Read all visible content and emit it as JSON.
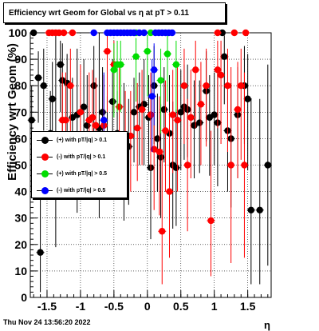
{
  "title": "Efficiency wrt Geom for Global vs   η at pT > 0.11",
  "timestamp": "Thu Nov 24 13:56:20 2022",
  "chart_data": {
    "type": "scatter",
    "xlabel": "η",
    "ylabel": "Efficiency wrt Geom (%)",
    "xlim": [
      -1.75,
      1.85
    ],
    "ylim": [
      0,
      100
    ],
    "x_ticks": [
      "-1.5",
      "-1",
      "-0.5",
      "0",
      "0.5",
      "1",
      "1.5"
    ],
    "y_ticks": [
      "0",
      "10",
      "20",
      "30",
      "40",
      "50",
      "60",
      "70",
      "80",
      "90",
      "100"
    ],
    "grid": true,
    "legend_position": "middle-left",
    "series": [
      {
        "name": "(+) with pT/|q| > 0.1",
        "color": "#000000",
        "points": [
          {
            "x": -1.7,
            "y": 100,
            "lo": 99,
            "hi": 100
          },
          {
            "x": -1.73,
            "y": 67,
            "lo": 47,
            "hi": 80
          },
          {
            "x": -1.63,
            "y": 83,
            "lo": 66,
            "hi": 93
          },
          {
            "x": -1.6,
            "y": 17,
            "lo": 2,
            "hi": 41
          },
          {
            "x": -1.55,
            "y": 80,
            "lo": 63,
            "hi": 94
          },
          {
            "x": -1.45,
            "y": 62,
            "lo": 41,
            "hi": 78
          },
          {
            "x": -1.42,
            "y": 75,
            "lo": 57,
            "hi": 89
          },
          {
            "x": -1.37,
            "y": 60,
            "lo": 19,
            "hi": 100
          },
          {
            "x": -1.3,
            "y": 88,
            "lo": 70,
            "hi": 97
          },
          {
            "x": -1.27,
            "y": 82,
            "lo": 50,
            "hi": 96
          },
          {
            "x": -1.2,
            "y": 81,
            "lo": 60,
            "hi": 92
          },
          {
            "x": -1.12,
            "y": 68,
            "lo": 50,
            "hi": 83
          },
          {
            "x": -1.05,
            "y": 69,
            "lo": 32,
            "hi": 94
          },
          {
            "x": -0.95,
            "y": 72,
            "lo": 52,
            "hi": 90
          },
          {
            "x": -0.9,
            "y": 65,
            "lo": 44,
            "hi": 84
          },
          {
            "x": -0.8,
            "y": 80,
            "lo": 59,
            "hi": 95
          },
          {
            "x": -0.72,
            "y": 64,
            "lo": 30,
            "hi": 100
          },
          {
            "x": -0.67,
            "y": 70,
            "lo": 49,
            "hi": 87
          },
          {
            "x": -0.6,
            "y": 59,
            "lo": 40,
            "hi": 76
          },
          {
            "x": -0.52,
            "y": 74,
            "lo": 55,
            "hi": 90
          },
          {
            "x": -0.45,
            "y": 62,
            "lo": 44,
            "hi": 78
          },
          {
            "x": -0.35,
            "y": 57,
            "lo": 29,
            "hi": 81
          },
          {
            "x": -0.28,
            "y": 57,
            "lo": 35,
            "hi": 75
          },
          {
            "x": -0.2,
            "y": 70,
            "lo": 51,
            "hi": 83
          },
          {
            "x": -0.12,
            "y": 72,
            "lo": 50,
            "hi": 85
          },
          {
            "x": -0.05,
            "y": 73,
            "lo": 50,
            "hi": 90
          },
          {
            "x": 0.02,
            "y": 68,
            "lo": 48,
            "hi": 84
          },
          {
            "x": 0.05,
            "y": 49,
            "lo": 22,
            "hi": 76
          },
          {
            "x": 0.1,
            "y": 80,
            "lo": 58,
            "hi": 95
          },
          {
            "x": 0.15,
            "y": 60,
            "lo": 40,
            "hi": 77
          },
          {
            "x": 0.2,
            "y": 53,
            "lo": 30,
            "hi": 73
          },
          {
            "x": 0.25,
            "y": 71,
            "lo": 51,
            "hi": 87
          },
          {
            "x": 0.33,
            "y": 62,
            "lo": 36,
            "hi": 84
          },
          {
            "x": 0.38,
            "y": 50,
            "lo": 26,
            "hi": 74
          },
          {
            "x": 0.43,
            "y": 49,
            "lo": 27,
            "hi": 71
          },
          {
            "x": 0.5,
            "y": 70,
            "lo": 48,
            "hi": 86
          },
          {
            "x": 0.55,
            "y": 72,
            "lo": 52,
            "hi": 88
          },
          {
            "x": 0.6,
            "y": 71,
            "lo": 53,
            "hi": 88
          },
          {
            "x": 0.7,
            "y": 65,
            "lo": 45,
            "hi": 82
          },
          {
            "x": 0.78,
            "y": 66,
            "lo": 47,
            "hi": 82
          },
          {
            "x": 0.88,
            "y": 78,
            "lo": 59,
            "hi": 93
          },
          {
            "x": 0.93,
            "y": 68,
            "lo": 46,
            "hi": 84
          },
          {
            "x": 1.0,
            "y": 69,
            "lo": 50,
            "hi": 85
          },
          {
            "x": 1.05,
            "y": 66,
            "lo": 42,
            "hi": 85
          },
          {
            "x": 1.12,
            "y": 100,
            "lo": 99,
            "hi": 100
          },
          {
            "x": 1.15,
            "y": 91,
            "lo": 73,
            "hi": 99
          },
          {
            "x": 1.2,
            "y": 63,
            "lo": 40,
            "hi": 82
          },
          {
            "x": 1.25,
            "y": 60,
            "lo": 34,
            "hi": 81
          },
          {
            "x": 1.35,
            "y": 69,
            "lo": 45,
            "hi": 87
          },
          {
            "x": 1.45,
            "y": 80,
            "lo": 58,
            "hi": 95
          },
          {
            "x": 1.5,
            "y": 75,
            "lo": 48,
            "hi": 92
          },
          {
            "x": 1.55,
            "y": 33,
            "lo": 5,
            "hi": 75
          },
          {
            "x": 1.68,
            "y": 33,
            "lo": 5,
            "hi": 75
          },
          {
            "x": 1.8,
            "y": 50,
            "lo": 12,
            "hi": 88
          }
        ]
      },
      {
        "name": "(-) with pT/|q| > 0.1",
        "color": "#ff0000",
        "points": [
          {
            "x": -1.47,
            "y": 100,
            "lo": 99,
            "hi": 100
          },
          {
            "x": -1.42,
            "y": 100,
            "lo": 99,
            "hi": 100
          },
          {
            "x": -1.37,
            "y": 100,
            "lo": 99,
            "hi": 100
          },
          {
            "x": -1.32,
            "y": 100,
            "lo": 99,
            "hi": 100
          },
          {
            "x": -1.25,
            "y": 100,
            "lo": 99,
            "hi": 100
          },
          {
            "x": -1.12,
            "y": 100,
            "lo": 99,
            "hi": 100
          },
          {
            "x": -1.27,
            "y": 67,
            "lo": 42,
            "hi": 85
          },
          {
            "x": -1.22,
            "y": 67,
            "lo": 42,
            "hi": 85
          },
          {
            "x": -1.15,
            "y": 80,
            "lo": 52,
            "hi": 94
          },
          {
            "x": -1.0,
            "y": 70,
            "lo": 47,
            "hi": 88
          },
          {
            "x": -0.87,
            "y": 67,
            "lo": 42,
            "hi": 85
          },
          {
            "x": -0.82,
            "y": 68,
            "lo": 44,
            "hi": 86
          },
          {
            "x": -0.77,
            "y": 65,
            "lo": 45,
            "hi": 83
          },
          {
            "x": -0.65,
            "y": 65,
            "lo": 38,
            "hi": 84
          },
          {
            "x": -0.6,
            "y": 93,
            "lo": 70,
            "hi": 99
          },
          {
            "x": -0.5,
            "y": 88,
            "lo": 70,
            "hi": 97
          },
          {
            "x": -0.42,
            "y": 72,
            "lo": 52,
            "hi": 87
          },
          {
            "x": -0.33,
            "y": 60,
            "lo": 40,
            "hi": 78
          },
          {
            "x": -0.25,
            "y": 61,
            "lo": 40,
            "hi": 78
          },
          {
            "x": -0.15,
            "y": 64,
            "lo": 44,
            "hi": 81
          },
          {
            "x": -0.08,
            "y": 71,
            "lo": 50,
            "hi": 86
          },
          {
            "x": 0.05,
            "y": 69,
            "lo": 48,
            "hi": 85
          },
          {
            "x": 0.1,
            "y": 56,
            "lo": 33,
            "hi": 77
          },
          {
            "x": 0.18,
            "y": 55,
            "lo": 31,
            "hi": 76
          },
          {
            "x": 0.22,
            "y": 25,
            "lo": 5,
            "hi": 56
          },
          {
            "x": 0.27,
            "y": 63,
            "lo": 40,
            "hi": 82
          },
          {
            "x": 0.33,
            "y": 40,
            "lo": 15,
            "hi": 70
          },
          {
            "x": 0.38,
            "y": 69,
            "lo": 47,
            "hi": 86
          },
          {
            "x": 0.45,
            "y": 67,
            "lo": 40,
            "hi": 87
          },
          {
            "x": 0.55,
            "y": 80,
            "lo": 58,
            "hi": 94
          },
          {
            "x": 0.6,
            "y": 50,
            "lo": 25,
            "hi": 75
          },
          {
            "x": 0.65,
            "y": 68,
            "lo": 45,
            "hi": 86
          },
          {
            "x": 0.72,
            "y": 86,
            "lo": 64,
            "hi": 97
          },
          {
            "x": 0.8,
            "y": 73,
            "lo": 50,
            "hi": 89
          },
          {
            "x": 0.88,
            "y": 80,
            "lo": 57,
            "hi": 94
          },
          {
            "x": 0.95,
            "y": 29,
            "lo": 8,
            "hi": 63
          },
          {
            "x": 1.05,
            "y": 86,
            "lo": 64,
            "hi": 97
          },
          {
            "x": 1.1,
            "y": 84,
            "lo": 58,
            "hi": 97
          },
          {
            "x": 1.2,
            "y": 80,
            "lo": 55,
            "hi": 94
          },
          {
            "x": 1.25,
            "y": 50,
            "lo": 13,
            "hi": 87
          },
          {
            "x": 1.35,
            "y": 71,
            "lo": 45,
            "hi": 89
          },
          {
            "x": 1.4,
            "y": 80,
            "lo": 52,
            "hi": 94
          },
          {
            "x": 1.45,
            "y": 50,
            "lo": 15,
            "hi": 85
          },
          {
            "x": 1.47,
            "y": 100,
            "lo": 99,
            "hi": 100
          },
          {
            "x": 1.05,
            "y": 100,
            "lo": 99,
            "hi": 100
          },
          {
            "x": 1.3,
            "y": 100,
            "lo": 99,
            "hi": 100
          }
        ]
      },
      {
        "name": "(+) with pT/|q| > 0.5",
        "color": "#00dd00",
        "points": [
          {
            "x": -0.5,
            "y": 86,
            "lo": 68,
            "hi": 96
          },
          {
            "x": -0.45,
            "y": 88,
            "lo": 70,
            "hi": 97
          },
          {
            "x": -0.4,
            "y": 88,
            "lo": 70,
            "hi": 97
          },
          {
            "x": -0.17,
            "y": 91,
            "lo": 74,
            "hi": 98
          },
          {
            "x": 0.0,
            "y": 93,
            "lo": 76,
            "hi": 99
          },
          {
            "x": 0.2,
            "y": 82,
            "lo": 62,
            "hi": 94
          },
          {
            "x": 0.3,
            "y": 92,
            "lo": 74,
            "hi": 99
          },
          {
            "x": 0.43,
            "y": 88,
            "lo": 70,
            "hi": 97
          },
          {
            "x": -0.17,
            "y": 100,
            "lo": 99,
            "hi": 100
          },
          {
            "x": 0.05,
            "y": 100,
            "lo": 99,
            "hi": 100
          }
        ]
      },
      {
        "name": "(-) with pT/|q| > 0.5",
        "color": "#0000ff",
        "points": [
          {
            "x": -0.8,
            "y": 100,
            "lo": 99,
            "hi": 100
          },
          {
            "x": -0.6,
            "y": 100,
            "lo": 99,
            "hi": 100
          },
          {
            "x": -0.55,
            "y": 100,
            "lo": 99,
            "hi": 100
          },
          {
            "x": -0.5,
            "y": 100,
            "lo": 99,
            "hi": 100
          },
          {
            "x": -0.45,
            "y": 100,
            "lo": 99,
            "hi": 100
          },
          {
            "x": -0.4,
            "y": 100,
            "lo": 99,
            "hi": 100
          },
          {
            "x": -0.35,
            "y": 100,
            "lo": 99,
            "hi": 100
          },
          {
            "x": -0.3,
            "y": 100,
            "lo": 99,
            "hi": 100
          },
          {
            "x": -0.25,
            "y": 100,
            "lo": 99,
            "hi": 100
          },
          {
            "x": -0.2,
            "y": 100,
            "lo": 99,
            "hi": 100
          },
          {
            "x": -0.12,
            "y": 100,
            "lo": 99,
            "hi": 100
          },
          {
            "x": -0.05,
            "y": 100,
            "lo": 99,
            "hi": 100
          },
          {
            "x": 0.12,
            "y": 100,
            "lo": 99,
            "hi": 100
          },
          {
            "x": 0.17,
            "y": 100,
            "lo": 99,
            "hi": 100
          },
          {
            "x": 0.22,
            "y": 100,
            "lo": 99,
            "hi": 100
          },
          {
            "x": 0.27,
            "y": 100,
            "lo": 99,
            "hi": 100
          },
          {
            "x": 0.32,
            "y": 100,
            "lo": 99,
            "hi": 100
          },
          {
            "x": 0.37,
            "y": 100,
            "lo": 99,
            "hi": 100
          },
          {
            "x": -0.65,
            "y": 67,
            "lo": 42,
            "hi": 85
          },
          {
            "x": 0.1,
            "y": 86,
            "lo": 65,
            "hi": 96
          },
          {
            "x": 0.07,
            "y": 76,
            "lo": 55,
            "hi": 90
          }
        ]
      }
    ]
  }
}
